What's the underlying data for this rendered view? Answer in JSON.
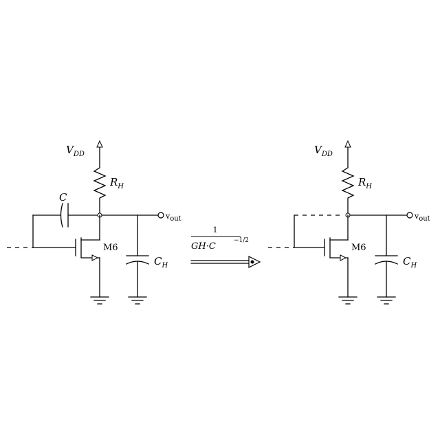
{
  "left": {
    "vdd": "V",
    "vdd_sub": "DD",
    "res": "R",
    "res_sub": "H",
    "cap_small": "C",
    "transistor": "M6",
    "cap_load": "C",
    "cap_load_sub": "H",
    "out": "v",
    "out_sub": "out"
  },
  "arrow": {
    "numerator": "1",
    "denominator": "GH·C",
    "exponent": "−1/2"
  },
  "right": {
    "vdd": "V",
    "vdd_sub": "DD",
    "res": "R",
    "res_sub": "H",
    "transistor": "M6",
    "cap_load": "C",
    "cap_load_sub": "H",
    "out": "v",
    "out_sub": "out"
  },
  "colors": {
    "line": "#000000",
    "background": "#ffffff"
  },
  "icons": [
    "ground-icon",
    "resistor-icon",
    "capacitor-icon",
    "nmos-transistor-icon",
    "arrow-icon"
  ]
}
